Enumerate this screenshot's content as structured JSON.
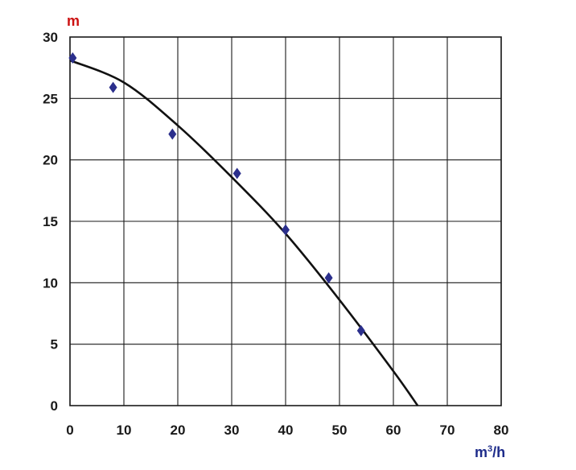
{
  "chart_data": {
    "type": "scatter",
    "ylabel": "m",
    "xlabel_base": "m",
    "xlabel_sup": "3",
    "xlabel_tail": "/h",
    "xlim": [
      0,
      80
    ],
    "ylim": [
      0,
      30
    ],
    "x_ticks": [
      0,
      10,
      20,
      30,
      40,
      50,
      60,
      70,
      80
    ],
    "y_ticks": [
      0,
      5,
      10,
      15,
      20,
      25,
      30
    ],
    "grid": true,
    "series": [
      {
        "kind": "points",
        "marker": "diamond",
        "color": "#2b2f8c",
        "x": [
          0.5,
          8,
          19,
          31,
          40,
          48,
          54
        ],
        "y": [
          28.3,
          25.9,
          22.1,
          18.9,
          14.3,
          10.4,
          6.1
        ]
      },
      {
        "kind": "curve",
        "color": "#111111",
        "x": [
          0,
          10,
          20,
          30,
          40,
          50,
          60,
          64.5
        ],
        "y": [
          28.1,
          26.3,
          22.8,
          18.6,
          14.0,
          8.6,
          2.8,
          0
        ]
      }
    ],
    "ylabel_color": "#cc1111",
    "xlabel_color": "#1d2b8a"
  }
}
